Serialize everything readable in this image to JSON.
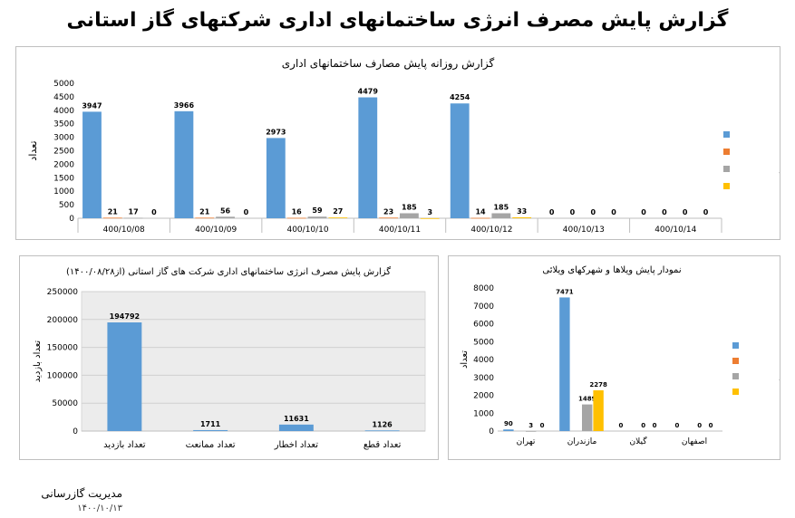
{
  "page_title": "گزارش پایش مصرف انرژی ساختمانهای اداری شرکتهای گاز استانی",
  "footer": {
    "name": "مدیریت گازرسانی",
    "date": "۱۴۰۰/۱۰/۱۳"
  },
  "colors": {
    "visit": "#5b9bd5",
    "prevent": "#ed7d31",
    "warn": "#a5a5a5",
    "cut": "#ffc000"
  },
  "chart_data": [
    {
      "id": "daily",
      "type": "bar",
      "title": "گزارش روزانه پایش مصارف ساختمانهای اداری",
      "xlabel": "",
      "ylabel": "تعداد",
      "ylim": [
        0,
        5000
      ],
      "yticks": [
        0,
        500,
        1000,
        1500,
        2000,
        2500,
        3000,
        3500,
        4000,
        4500,
        5000
      ],
      "categories": [
        "400/10/08",
        "400/10/09",
        "400/10/10",
        "400/10/11",
        "400/10/12",
        "400/10/13",
        "400/10/14"
      ],
      "series": [
        {
          "name": "تعداد بازدید",
          "color": "#5b9bd5",
          "values": [
            3947,
            3966,
            2973,
            4479,
            4254,
            0,
            0
          ]
        },
        {
          "name": "تعداد ممانعت",
          "color": "#ed7d31",
          "values": [
            21,
            21,
            16,
            23,
            14,
            0,
            0
          ]
        },
        {
          "name": "تعداد اخطار",
          "color": "#a5a5a5",
          "values": [
            17,
            56,
            59,
            185,
            185,
            0,
            0
          ]
        },
        {
          "name": "تعداد قطع",
          "color": "#ffc000",
          "values": [
            0,
            0,
            27,
            3,
            33,
            0,
            0
          ]
        }
      ],
      "legend": "right"
    },
    {
      "id": "total",
      "type": "bar",
      "title": "گزارش پایش مصرف انرژی ساختمانهای اداری شرکت های گاز استانی (از۱۴۰۰/۰۸/۲۸)",
      "xlabel": "",
      "ylabel": "تعداد بازدید",
      "ylim": [
        0,
        250000
      ],
      "yticks": [
        0,
        50000,
        100000,
        150000,
        200000,
        250000
      ],
      "categories": [
        "تعداد بازدید",
        "تعداد ممانعت",
        "تعداد اخطار",
        "تعداد قطع"
      ],
      "values": [
        194792,
        1711,
        11631,
        1126
      ],
      "color": "#5b9bd5",
      "grid": true
    },
    {
      "id": "villa",
      "type": "bar",
      "title": "نمودار پایش ویلاها و شهرکهای ویلائی",
      "xlabel": "",
      "ylabel": "تعداد",
      "ylim": [
        0,
        8000
      ],
      "yticks": [
        0,
        1000,
        2000,
        3000,
        4000,
        5000,
        6000,
        7000,
        8000
      ],
      "categories": [
        "تهران",
        "مازندران",
        "گیلان",
        "اصفهان"
      ],
      "series": [
        {
          "name": "تعداد بازدید",
          "color": "#5b9bd5",
          "values": [
            90,
            7471,
            0,
            0
          ]
        },
        {
          "name": "تعداد ممانعت",
          "color": "#ed7d31",
          "values": [
            0,
            0,
            0,
            0
          ]
        },
        {
          "name": "تعداد اخطار",
          "color": "#a5a5a5",
          "values": [
            3,
            1489,
            0,
            0
          ]
        },
        {
          "name": "تعداد قطع",
          "color": "#ffc000",
          "values": [
            0,
            2278,
            0,
            0
          ]
        }
      ],
      "value_labels": [
        [
          "90",
          "",
          "3",
          "0"
        ],
        [
          "7471",
          "",
          "1489",
          "2278"
        ],
        [
          "0",
          "",
          "0",
          "0"
        ],
        [
          "0",
          "",
          "0",
          "0"
        ]
      ],
      "legend": "right"
    }
  ]
}
